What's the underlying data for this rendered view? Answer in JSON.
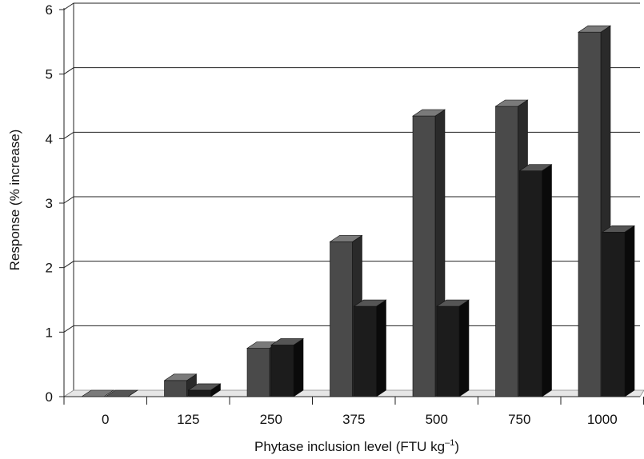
{
  "chart_data": {
    "type": "bar",
    "style": "3d-clustered",
    "categories": [
      "0",
      "125",
      "250",
      "375",
      "500",
      "750",
      "1000"
    ],
    "series": [
      {
        "values": [
          0,
          0.25,
          0.75,
          2.4,
          4.35,
          4.5,
          5.65
        ]
      },
      {
        "values": [
          0,
          0.1,
          0.8,
          1.4,
          1.4,
          3.5,
          2.55
        ]
      }
    ],
    "title": "",
    "xlabel": "Phytase inclusion level (FTU kg",
    "xlabel_superscript": "–1",
    "xlabel_suffix": ")",
    "ylabel": "Response (% increase)",
    "yticks": [
      "0",
      "1",
      "2",
      "3",
      "4",
      "5",
      "6"
    ],
    "ylim": [
      0,
      6
    ],
    "grid": true,
    "legend": "none",
    "colors": {
      "series_1_front": "#4a4a4a",
      "series_1_top": "#7a7a7a",
      "series_1_side": "#2a2a2a",
      "series_2_front": "#1c1c1c",
      "series_2_top": "#555555",
      "series_2_side": "#0a0a0a",
      "grid": "#222222",
      "floor": "#9a9a9a"
    }
  }
}
